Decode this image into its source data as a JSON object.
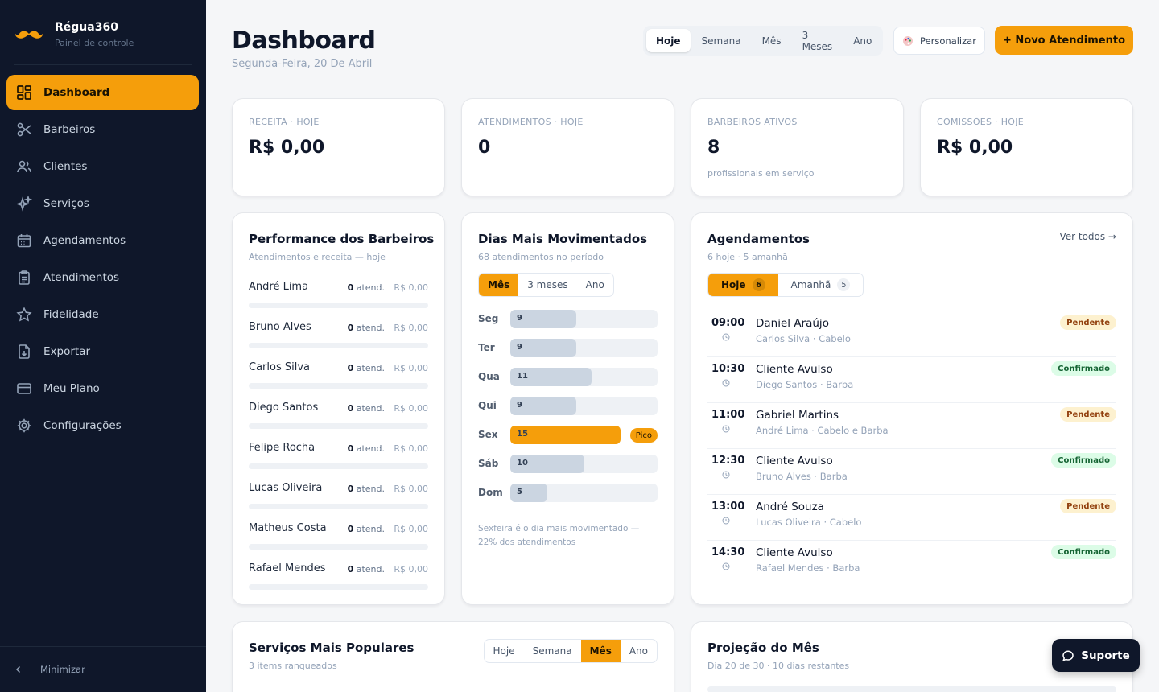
{
  "brand": {
    "name": "Régua360",
    "subtitle": "Painel de controle"
  },
  "sidebar": {
    "items": [
      {
        "label": "Dashboard",
        "icon": "dashboard-icon",
        "active": true
      },
      {
        "label": "Barbeiros",
        "icon": "scissors-icon"
      },
      {
        "label": "Clientes",
        "icon": "users-icon"
      },
      {
        "label": "Serviços",
        "icon": "sparkles-icon"
      },
      {
        "label": "Agendamentos",
        "icon": "calendar-icon"
      },
      {
        "label": "Atendimentos",
        "icon": "clipboard-icon"
      },
      {
        "label": "Fidelidade",
        "icon": "star-icon"
      },
      {
        "label": "Exportar",
        "icon": "export-icon"
      },
      {
        "label": "Meu Plano",
        "icon": "credit-card-icon"
      },
      {
        "label": "Configurações",
        "icon": "gear-icon"
      }
    ],
    "minimize_label": "Minimizar"
  },
  "header": {
    "title": "Dashboard",
    "date": "Segunda-Feira, 20 De Abril",
    "period_tabs": [
      "Hoje",
      "Semana",
      "Mês",
      "3 Meses",
      "Ano"
    ],
    "active_period": "Hoje",
    "customize_label": "Personalizar",
    "new_button_label": "+ Novo Atendimento"
  },
  "kpis": [
    {
      "label": "RECEITA · HOJE",
      "value": "R$ 0,00",
      "sub": ""
    },
    {
      "label": "ATENDIMENTOS · HOJE",
      "value": "0",
      "sub": ""
    },
    {
      "label": "BARBEIROS ATIVOS",
      "value": "8",
      "sub": "profissionais em serviço"
    },
    {
      "label": "COMISSÕES · HOJE",
      "value": "R$ 0,00",
      "sub": ""
    }
  ],
  "performance": {
    "title": "Performance dos Barbeiros",
    "subtitle": "Atendimentos e receita — hoje",
    "unit": "atend.",
    "rows": [
      {
        "name": "André Lima",
        "count": "0",
        "revenue": "R$ 0,00"
      },
      {
        "name": "Bruno Alves",
        "count": "0",
        "revenue": "R$ 0,00"
      },
      {
        "name": "Carlos Silva",
        "count": "0",
        "revenue": "R$ 0,00"
      },
      {
        "name": "Diego Santos",
        "count": "0",
        "revenue": "R$ 0,00"
      },
      {
        "name": "Felipe Rocha",
        "count": "0",
        "revenue": "R$ 0,00"
      },
      {
        "name": "Lucas Oliveira",
        "count": "0",
        "revenue": "R$ 0,00"
      },
      {
        "name": "Matheus Costa",
        "count": "0",
        "revenue": "R$ 0,00"
      },
      {
        "name": "Rafael Mendes",
        "count": "0",
        "revenue": "R$ 0,00"
      }
    ]
  },
  "busy_days": {
    "title": "Dias Mais Movimentados",
    "subtitle": "68 atendimentos no período",
    "tabs": [
      "Mês",
      "3 meses",
      "Ano"
    ],
    "active_tab": "Mês",
    "peak_label": "Pico",
    "note": "Sexfeira é o dia mais movimentado — 22% dos atendimentos"
  },
  "chart_data": {
    "type": "bar",
    "categories": [
      "Seg",
      "Ter",
      "Qua",
      "Qui",
      "Sex",
      "Sáb",
      "Dom"
    ],
    "values": [
      9,
      9,
      11,
      9,
      15,
      10,
      5
    ],
    "highlight": "Sex",
    "colors": {
      "bar": "#cbd5e1",
      "peak": "#f59e0b"
    }
  },
  "appointments": {
    "title": "Agendamentos",
    "subtitle": "6 hoje · 5 amanhã",
    "view_all": "Ver todos →",
    "tabs": [
      {
        "label": "Hoje",
        "count": "6",
        "active": true
      },
      {
        "label": "Amanhã",
        "count": "5"
      }
    ],
    "rows": [
      {
        "time": "09:00",
        "name": "Daniel Araújo",
        "detail": "Carlos Silva · Cabelo",
        "status": "Pendente",
        "kind": "pending"
      },
      {
        "time": "10:30",
        "name": "Cliente Avulso",
        "detail": "Diego Santos · Barba",
        "status": "Confirmado",
        "kind": "confirmed"
      },
      {
        "time": "11:00",
        "name": "Gabriel Martins",
        "detail": "André Lima · Cabelo e Barba",
        "status": "Pendente",
        "kind": "pending"
      },
      {
        "time": "12:30",
        "name": "Cliente Avulso",
        "detail": "Bruno Alves · Barba",
        "status": "Confirmado",
        "kind": "confirmed"
      },
      {
        "time": "13:00",
        "name": "André Souza",
        "detail": "Lucas Oliveira · Cabelo",
        "status": "Pendente",
        "kind": "pending"
      },
      {
        "time": "14:30",
        "name": "Cliente Avulso",
        "detail": "Rafael Mendes · Barba",
        "status": "Confirmado",
        "kind": "confirmed"
      }
    ]
  },
  "popular_services": {
    "title": "Serviços Mais Populares",
    "subtitle": "3 items ranqueados",
    "tabs": [
      "Hoje",
      "Semana",
      "Mês",
      "Ano"
    ],
    "active_tab": "Mês"
  },
  "projection": {
    "title": "Projeção do Mês",
    "subtitle": "Dia 20 de 30 · 10 dias restantes"
  },
  "support_label": "Suporte",
  "colors": {
    "accent": "#f59e0b",
    "sidebar": "#0f172a"
  }
}
